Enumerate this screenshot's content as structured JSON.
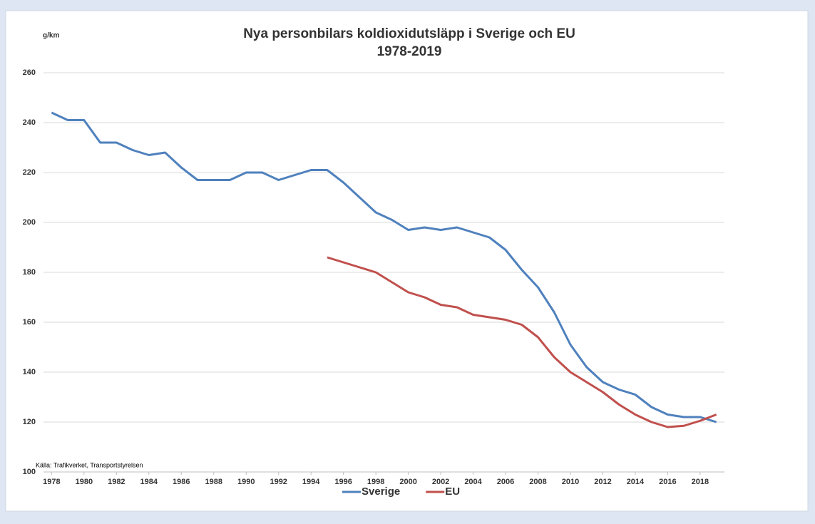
{
  "chart_data": {
    "type": "line",
    "title": "Nya personbilars koldioxidutsläpp i Sverige och EU",
    "subtitle": "1978-2019",
    "y_axis_label": "g/km",
    "source": "Källa: Trafikverket, Transportstyrelsen",
    "x": [
      1978,
      1979,
      1980,
      1981,
      1982,
      1983,
      1984,
      1985,
      1986,
      1987,
      1988,
      1989,
      1990,
      1991,
      1992,
      1993,
      1994,
      1995,
      1996,
      1997,
      1998,
      1999,
      2000,
      2001,
      2002,
      2003,
      2004,
      2005,
      2006,
      2007,
      2008,
      2009,
      2010,
      2011,
      2012,
      2013,
      2014,
      2015,
      2016,
      2017,
      2018,
      2019
    ],
    "series": [
      {
        "name": "Sverige",
        "color": "#4f81bd",
        "values": [
          244,
          241,
          241,
          232,
          232,
          229,
          227,
          228,
          222,
          217,
          217,
          217,
          220,
          220,
          217,
          219,
          221,
          221,
          216,
          210,
          204,
          201,
          197,
          198,
          197,
          198,
          196,
          194,
          189,
          181,
          174,
          164,
          151,
          142,
          136,
          133,
          131,
          126,
          123,
          122,
          122,
          120
        ]
      },
      {
        "name": "EU",
        "color": "#c0504d",
        "values": [
          null,
          null,
          null,
          null,
          null,
          null,
          null,
          null,
          null,
          null,
          null,
          null,
          null,
          null,
          null,
          null,
          null,
          186,
          184,
          182,
          180,
          176,
          172,
          170,
          167,
          166,
          163,
          162,
          161,
          159,
          154,
          146,
          140,
          136,
          132,
          127,
          123,
          120,
          118,
          118.5,
          120.5,
          123
        ]
      }
    ],
    "xlim": [
      1977.5,
      2019.5
    ],
    "xticks": [
      1978,
      1980,
      1982,
      1984,
      1986,
      1988,
      1990,
      1992,
      1994,
      1996,
      1998,
      2000,
      2002,
      2004,
      2006,
      2008,
      2010,
      2012,
      2014,
      2016,
      2018
    ],
    "ylim": [
      100,
      260
    ],
    "yticks": [
      100,
      120,
      140,
      160,
      180,
      200,
      220,
      240,
      260
    ],
    "grid": true,
    "legend": "bottom"
  }
}
